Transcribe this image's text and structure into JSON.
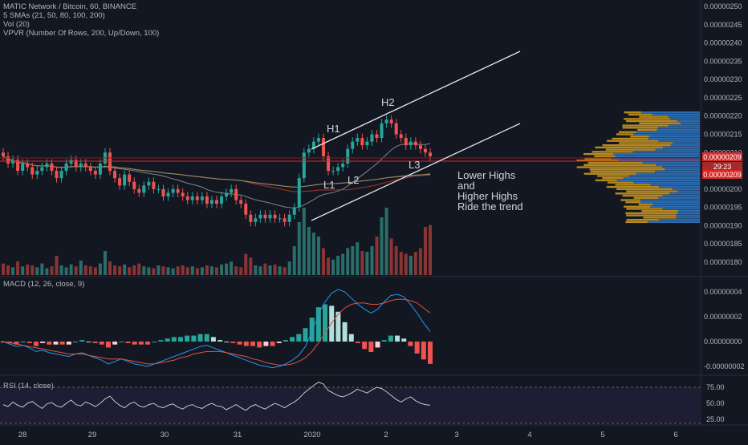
{
  "header": {
    "symbol_line": "MATIC Network / Bitcoin, 60, BINANCE",
    "indicators": [
      "5 SMAs (21, 50, 80, 100, 200)",
      "Vol (20)",
      "VPVR (Number Of Rows, 200, Up/Down, 100)"
    ]
  },
  "macd_panel": {
    "label": "MACD (12, 26, close, 9)"
  },
  "rsi_panel": {
    "label": "RSI (14, close)"
  },
  "annotations": {
    "H1": "H1",
    "H2": "H2",
    "L1": "L1",
    "L2": "L2",
    "L3": "L3",
    "note_lines": [
      "Lower Highs",
      "and",
      "Higher Highs",
      "Ride the trend"
    ]
  },
  "price_badges": {
    "last_price": "0.00000209",
    "countdown": "29:23",
    "sma_price": "0.00000209"
  },
  "colors": {
    "background": "#131722",
    "up": "#26a69a",
    "down": "#ef5350",
    "volume_up": "#2a6e6a",
    "volume_down": "#8a3434",
    "vpvr_up": "#2f74c0",
    "vpvr_down": "#c8961f"
  },
  "chart_data": [
    {
      "type": "candlestick",
      "title": "MATIC Network / Bitcoin, 60, BINANCE",
      "x_ticks": [
        "28",
        "29",
        "30",
        "31",
        "2020",
        "2",
        "3",
        "4",
        "5",
        "6"
      ],
      "y_ticks": [
        "0.00000180",
        "0.00000185",
        "0.00000190",
        "0.00000195",
        "0.00000200",
        "0.00000205",
        "0.00000210",
        "0.00000215",
        "0.00000220",
        "0.00000225",
        "0.00000230",
        "0.00000235",
        "0.00000240",
        "0.00000245",
        "0.00000250"
      ],
      "ylim": [
        1.775e-06,
        2.505e-06
      ],
      "last_price": 2.09e-06,
      "close_series": [
        209,
        207,
        208,
        205,
        207,
        206,
        204,
        205,
        206,
        207,
        205,
        203,
        205,
        207,
        208,
        206,
        207,
        206,
        205,
        204,
        207,
        210,
        205,
        203,
        201,
        204,
        202,
        200,
        199,
        201,
        202,
        200,
        200,
        198,
        199,
        200,
        199,
        198,
        197,
        198,
        197,
        198,
        196,
        197,
        196,
        198,
        199,
        200,
        197,
        196,
        193,
        191,
        192,
        193,
        192,
        193,
        192,
        192,
        191,
        193,
        195,
        203,
        210,
        211,
        213,
        214,
        209,
        205,
        205,
        206,
        207,
        211,
        213,
        214,
        212,
        213,
        215,
        214,
        218,
        219,
        218,
        215,
        214,
        212,
        213,
        212,
        211,
        210,
        209
      ],
      "close_units": "1e-8 BTC",
      "volume_relative": [
        12,
        10,
        8,
        14,
        9,
        11,
        10,
        8,
        12,
        7,
        9,
        20,
        10,
        8,
        11,
        9,
        15,
        10,
        9,
        8,
        12,
        25,
        14,
        10,
        9,
        11,
        8,
        10,
        12,
        9,
        8,
        7,
        10,
        9,
        8,
        7,
        9,
        10,
        8,
        9,
        7,
        8,
        10,
        9,
        8,
        11,
        12,
        14,
        9,
        8,
        22,
        18,
        10,
        9,
        12,
        10,
        11,
        9,
        8,
        14,
        30,
        55,
        70,
        50,
        44,
        40,
        28,
        18,
        16,
        20,
        22,
        28,
        30,
        34,
        25,
        24,
        30,
        40,
        60,
        70,
        38,
        30,
        24,
        22,
        20,
        24,
        28,
        50,
        52
      ],
      "annotations": [
        {
          "text": "H1",
          "x": "01 Jan 2020"
        },
        {
          "text": "H2",
          "x": "02 Jan 2020"
        },
        {
          "text": "L1",
          "x": "01 Jan 2020"
        },
        {
          "text": "L2",
          "x": "01 Jan 2020"
        },
        {
          "text": "L3",
          "x": "02 Jan 2020"
        },
        {
          "text": "Lower Highs and Higher Highs Ride the trend"
        }
      ],
      "volume_profile_side": "right"
    },
    {
      "type": "line",
      "title": "MACD (12, 26, close, 9)",
      "y_ticks": [
        "-0.00000002",
        "0.00000000",
        "0.00000002",
        "0.00000004"
      ],
      "ylim": [
        -2.7e-08,
        4.7e-08
      ],
      "macd": [
        0.0,
        -0.2,
        -0.4,
        -0.3,
        -0.5,
        -0.8,
        -0.7,
        -0.9,
        -1.0,
        -1.1,
        -1.2,
        -1.0,
        -0.9,
        -1.1,
        -1.3,
        -1.5,
        -1.8,
        -1.6,
        -1.4,
        -1.6,
        -1.8,
        -1.9,
        -2.0,
        -1.8,
        -1.6,
        -1.4,
        -1.2,
        -1.0,
        -0.8,
        -0.6,
        -0.4,
        -0.3,
        -0.5,
        -0.7,
        -0.9,
        -1.1,
        -1.3,
        -1.5,
        -1.7,
        -1.9,
        -2.0,
        -2.1,
        -2.0,
        -1.8,
        -1.5,
        -1.1,
        -0.4,
        0.8,
        2.2,
        3.2,
        3.9,
        4.2,
        4.0,
        3.5,
        3.0,
        2.6,
        2.3,
        2.6,
        3.2,
        3.7,
        3.8,
        3.6,
        3.0,
        2.3,
        1.5,
        0.8
      ],
      "signal": [
        0.0,
        -0.1,
        -0.2,
        -0.3,
        -0.4,
        -0.5,
        -0.6,
        -0.7,
        -0.8,
        -0.9,
        -1.0,
        -1.0,
        -1.0,
        -1.1,
        -1.2,
        -1.3,
        -1.4,
        -1.4,
        -1.4,
        -1.5,
        -1.6,
        -1.7,
        -1.8,
        -1.8,
        -1.7,
        -1.6,
        -1.5,
        -1.3,
        -1.2,
        -1.0,
        -0.9,
        -0.8,
        -0.8,
        -0.8,
        -0.9,
        -1.0,
        -1.1,
        -1.2,
        -1.4,
        -1.5,
        -1.7,
        -1.8,
        -1.9,
        -1.9,
        -1.8,
        -1.6,
        -1.3,
        -0.8,
        -0.1,
        0.7,
        1.5,
        2.2,
        2.7,
        3.0,
        3.1,
        3.1,
        3.0,
        3.0,
        3.1,
        3.3,
        3.4,
        3.4,
        3.3,
        3.1,
        2.7,
        2.3
      ],
      "macd_units": "1e-8"
    },
    {
      "type": "line",
      "title": "RSI (14, close)",
      "y_ticks": [
        "25.00",
        "50.00",
        "75.00"
      ],
      "ylim": [
        15,
        85
      ],
      "levels": [
        70,
        30
      ],
      "values": [
        48,
        45,
        52,
        47,
        44,
        50,
        53,
        47,
        42,
        49,
        51,
        46,
        44,
        50,
        55,
        48,
        46,
        52,
        49,
        45,
        50,
        57,
        61,
        53,
        47,
        43,
        49,
        52,
        46,
        44,
        48,
        50,
        45,
        43,
        47,
        49,
        44,
        41,
        46,
        48,
        44,
        42,
        47,
        50,
        46,
        45,
        40,
        44,
        48,
        43,
        39,
        45,
        48,
        44,
        41,
        46,
        50,
        47,
        43,
        48,
        52,
        58,
        66,
        72,
        78,
        83,
        80,
        70,
        66,
        62,
        60,
        63,
        67,
        72,
        69,
        66,
        71,
        75,
        73,
        68,
        62,
        56,
        52,
        57,
        60,
        54,
        50,
        48,
        47
      ]
    }
  ]
}
